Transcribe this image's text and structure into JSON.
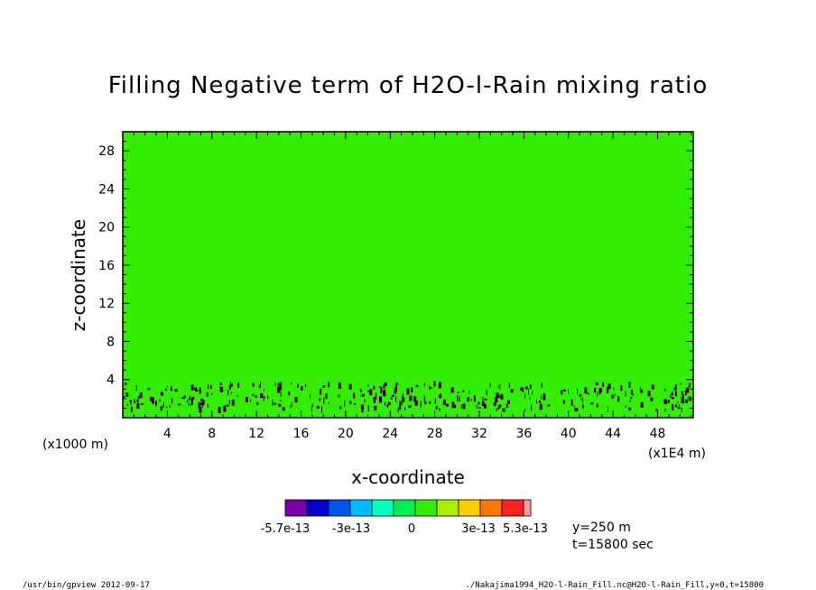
{
  "chart_data": {
    "type": "heatmap",
    "title": "Filling Negative term of H2O-l-Rain mixing ratio",
    "xlabel": "x-coordinate",
    "ylabel": "z-coordinate",
    "x_unit_left": "(x1000 m)",
    "x_unit_right": "(x1E4 m)",
    "xlim": [
      0,
      51.2
    ],
    "ylim": [
      0,
      30
    ],
    "x_ticks": [
      "4",
      "8",
      "12",
      "16",
      "20",
      "24",
      "28",
      "32",
      "36",
      "40",
      "44",
      "48"
    ],
    "x_tick_values": [
      4,
      8,
      12,
      16,
      20,
      24,
      28,
      32,
      36,
      40,
      44,
      48
    ],
    "y_ticks": [
      "4",
      "8",
      "12",
      "16",
      "20",
      "24",
      "28"
    ],
    "y_tick_values": [
      4,
      8,
      12,
      16,
      20,
      24,
      28
    ],
    "field": {
      "background_value": 0,
      "background_color": "#33ee00",
      "negative_speckle_band_z": [
        0.8,
        3.6
      ],
      "negative_speckle_color": "#220022"
    },
    "colorbar": {
      "colors": [
        "#7700aa",
        "#0000cc",
        "#0055ee",
        "#00bbff",
        "#00ffbb",
        "#00ee55",
        "#33ee00",
        "#aaee00",
        "#ffcc00",
        "#ff7700",
        "#ff2222",
        "#ff9999"
      ],
      "labels": [
        "-5.7e-13",
        "-3e-13",
        "0",
        "3e-13",
        "5.3e-13"
      ]
    },
    "info": [
      "y=250 m",
      "t=15800 sec"
    ]
  },
  "footer": {
    "left": "/usr/bin/gpview   2012-09-17",
    "right": "./Nakajima1994_H2O-l-Rain_Fill.nc@H2O-l-Rain_Fill,y=0,t=15800"
  }
}
